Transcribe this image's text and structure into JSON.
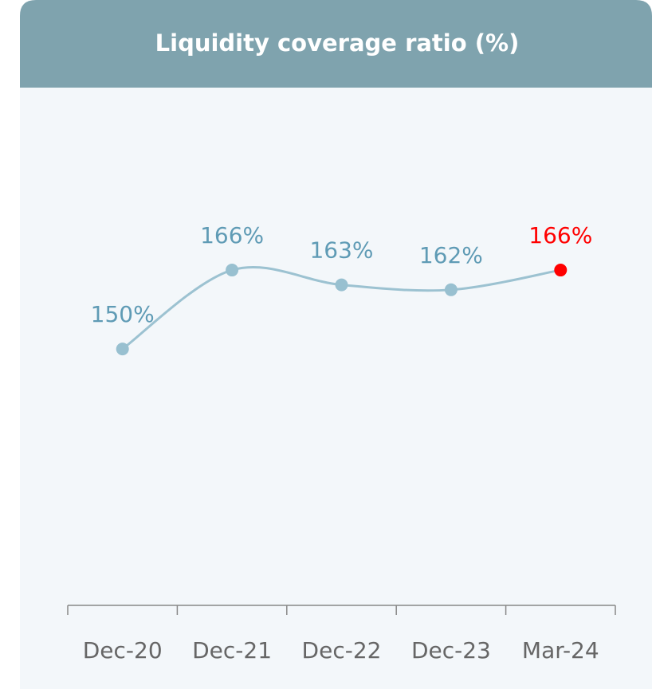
{
  "chart_data": {
    "type": "line",
    "title": "Liquidity coverage ratio (%)",
    "categories": [
      "Dec-20",
      "Dec-21",
      "Dec-22",
      "Dec-23",
      "Mar-24"
    ],
    "values": [
      150,
      166,
      163,
      162,
      166
    ],
    "value_labels": [
      "150%",
      "166%",
      "163%",
      "162%",
      "166%"
    ],
    "color": "#9cc2d1",
    "point_colors": [
      "#98c0d0",
      "#98c0d0",
      "#98c0d0",
      "#98c0d0",
      "#ff0000"
    ],
    "label_colors": [
      "#5f9bb5",
      "#5f9bb5",
      "#5f9bb5",
      "#5f9bb5",
      "#ff0000"
    ],
    "ylim": [
      98,
      203
    ]
  }
}
